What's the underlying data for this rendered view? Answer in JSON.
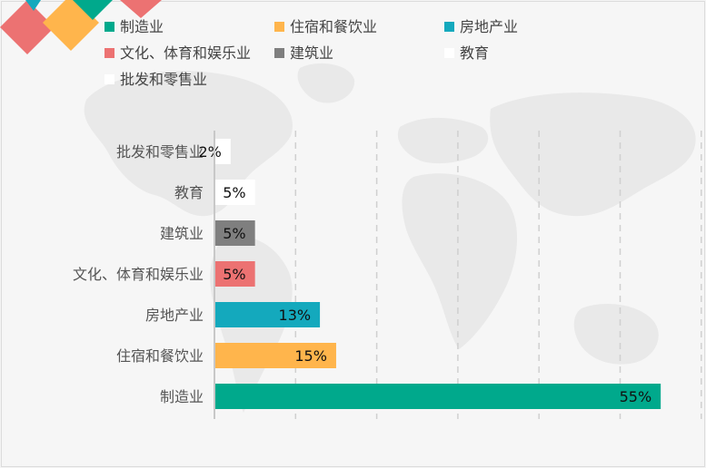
{
  "colors": {
    "background": "#f6f6f6",
    "map": "#e9e9e9",
    "grid": "#d0d0d0",
    "axis": "#c8c8c8"
  },
  "chart_data": {
    "type": "bar",
    "orientation": "horizontal",
    "title": "",
    "xlabel": "",
    "ylabel": "",
    "xlim": [
      0,
      60
    ],
    "grid": true,
    "grid_style": "dashed vertical",
    "legend_position": "top",
    "value_format": "percent",
    "categories": [
      "批发和零售业",
      "教育",
      "建筑业",
      "文化、体育和娱乐业",
      "房地产业",
      "住宿和餐饮业",
      "制造业"
    ],
    "values": [
      2,
      5,
      5,
      5,
      13,
      15,
      55
    ],
    "colors": [
      "#ffffff",
      "#ffffff",
      "#7f7f7f",
      "#ec7272",
      "#14a9bd",
      "#ffb54c",
      "#00a98c"
    ],
    "legend": [
      {
        "name": "制造业",
        "color": "#00a98c"
      },
      {
        "name": "住宿和餐饮业",
        "color": "#ffb54c"
      },
      {
        "name": "房地产业",
        "color": "#14a9bd"
      },
      {
        "name": "文化、体育和娱乐业",
        "color": "#ec7272"
      },
      {
        "name": "建筑业",
        "color": "#7f7f7f"
      },
      {
        "name": "教育",
        "color": "#ffffff"
      },
      {
        "name": "批发和零售业",
        "color": "#ffffff"
      }
    ]
  }
}
